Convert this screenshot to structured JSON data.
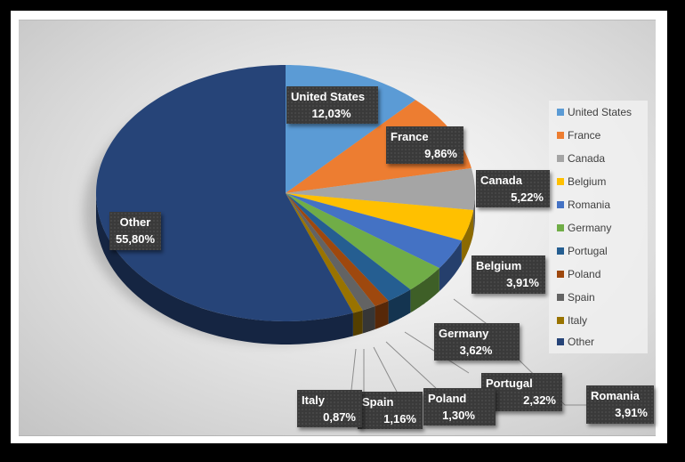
{
  "chart_data": {
    "type": "pie",
    "style": "3d-pie",
    "title": "",
    "legend_position": "right",
    "categories": [
      "United States",
      "France",
      "Canada",
      "Belgium",
      "Romania",
      "Germany",
      "Portugal",
      "Poland",
      "Spain",
      "Italy",
      "Other"
    ],
    "values": [
      12.03,
      9.86,
      5.22,
      3.91,
      3.91,
      3.62,
      2.32,
      1.3,
      1.16,
      0.87,
      55.8
    ],
    "value_labels": [
      "12,03%",
      "9,86%",
      "5,22%",
      "3,91%",
      "3,91%",
      "3,62%",
      "2,32%",
      "1,30%",
      "1,16%",
      "0,87%",
      "55,80%"
    ],
    "colors": [
      "#5B9BD5",
      "#ED7D31",
      "#A5A5A5",
      "#FFC000",
      "#4472C4",
      "#70AD47",
      "#255E91",
      "#9E480E",
      "#636363",
      "#997300",
      "#264478"
    ]
  },
  "legend": {
    "items": [
      {
        "label": "United States",
        "color": "#5B9BD5"
      },
      {
        "label": "France",
        "color": "#ED7D31"
      },
      {
        "label": "Canada",
        "color": "#A5A5A5"
      },
      {
        "label": "Belgium",
        "color": "#FFC000"
      },
      {
        "label": "Romania",
        "color": "#4472C4"
      },
      {
        "label": "Germany",
        "color": "#70AD47"
      },
      {
        "label": "Portugal",
        "color": "#255E91"
      },
      {
        "label": "Poland",
        "color": "#9E480E"
      },
      {
        "label": "Spain",
        "color": "#636363"
      },
      {
        "label": "Italy",
        "color": "#997300"
      },
      {
        "label": "Other",
        "color": "#264478"
      }
    ]
  },
  "data_labels": [
    {
      "name": "United States",
      "value": "12,03%"
    },
    {
      "name": "France",
      "value": "9,86%"
    },
    {
      "name": "Canada",
      "value": "5,22%"
    },
    {
      "name": "Belgium",
      "value": "3,91%"
    },
    {
      "name": "Romania",
      "value": "3,91%"
    },
    {
      "name": "Germany",
      "value": "3,62%"
    },
    {
      "name": "Portugal",
      "value": "2,32%"
    },
    {
      "name": "Poland",
      "value": "1,30%"
    },
    {
      "name": "Spain",
      "value": "1,16%"
    },
    {
      "name": "Italy",
      "value": "0,87%"
    },
    {
      "name": "Other",
      "value": "55,80%"
    }
  ]
}
